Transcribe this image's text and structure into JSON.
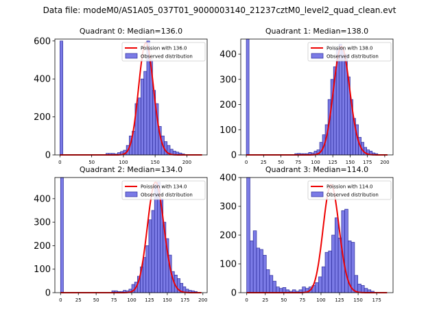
{
  "figure": {
    "suptitle": "Data file: modeM0/AS1A05_037T01_9000003140_21237cztM0_level2_quad_clean.evt"
  },
  "colors": {
    "hist_fill": "#7b7be6",
    "hist_edge": "#2b2b9a",
    "poisson": "#ee0000"
  },
  "chart_data": [
    {
      "type": "bar",
      "title": "Quadrant 0: Median=136.0",
      "median": 136.0,
      "xlim": [
        -8,
        232
      ],
      "ylim": [
        0,
        610
      ],
      "xticks": [
        0,
        50,
        100,
        150,
        200
      ],
      "yticks": [
        0,
        200,
        400,
        600
      ],
      "legend": {
        "placement": "top-right",
        "line": "Poission with 136.0",
        "patch": "Observed distribution"
      },
      "poisson_peak": 590,
      "bin_width": 4.6,
      "bins": [
        [
          0,
          600
        ],
        [
          72.5,
          8
        ],
        [
          77,
          8
        ],
        [
          81.6,
          8
        ],
        [
          86.2,
          5
        ],
        [
          90.8,
          12
        ],
        [
          95.4,
          18
        ],
        [
          100,
          25
        ],
        [
          104.6,
          50
        ],
        [
          109.2,
          100
        ],
        [
          113.8,
          125
        ],
        [
          118.4,
          270
        ],
        [
          123,
          300
        ],
        [
          127.6,
          400
        ],
        [
          132.2,
          440
        ],
        [
          136.8,
          600
        ],
        [
          141.4,
          500
        ],
        [
          146,
          340
        ],
        [
          150.6,
          270
        ],
        [
          155.2,
          150
        ],
        [
          159.8,
          100
        ],
        [
          164.4,
          70
        ],
        [
          169,
          50
        ],
        [
          173.6,
          30
        ],
        [
          178.2,
          20
        ],
        [
          182.8,
          15
        ],
        [
          187.4,
          10
        ],
        [
          192,
          5
        ]
      ]
    },
    {
      "type": "bar",
      "title": "Quadrant 1: Median=138.0",
      "median": 138.0,
      "xlim": [
        -8,
        212
      ],
      "ylim": [
        0,
        460
      ],
      "xticks": [
        0,
        25,
        50,
        75,
        100,
        125,
        150,
        175,
        200
      ],
      "yticks": [
        0,
        100,
        200,
        300,
        400
      ],
      "legend": {
        "placement": "top-right",
        "line": "Poission with 138.0",
        "patch": "Observed distribution"
      },
      "poisson_peak": 430,
      "bin_width": 4.0,
      "bins": [
        [
          0,
          460
        ],
        [
          70,
          5
        ],
        [
          74,
          6
        ],
        [
          78,
          5
        ],
        [
          82,
          5
        ],
        [
          86,
          5
        ],
        [
          90,
          10
        ],
        [
          94,
          8
        ],
        [
          98,
          15
        ],
        [
          102,
          20
        ],
        [
          106,
          50
        ],
        [
          110,
          80
        ],
        [
          114,
          120
        ],
        [
          118,
          220
        ],
        [
          122,
          300
        ],
        [
          126,
          350
        ],
        [
          130,
          420
        ],
        [
          134,
          440
        ],
        [
          138,
          420
        ],
        [
          142,
          400
        ],
        [
          146,
          310
        ],
        [
          150,
          220
        ],
        [
          154,
          145
        ],
        [
          158,
          120
        ],
        [
          162,
          70
        ],
        [
          166,
          50
        ],
        [
          170,
          30
        ],
        [
          174,
          20
        ],
        [
          178,
          15
        ],
        [
          182,
          8
        ],
        [
          186,
          5
        ]
      ]
    },
    {
      "type": "bar",
      "title": "Quadrant 2: Median=134.0",
      "median": 134.0,
      "xlim": [
        -8,
        206
      ],
      "ylim": [
        0,
        490
      ],
      "xticks": [
        0,
        25,
        50,
        75,
        100,
        125,
        150,
        175,
        200
      ],
      "yticks": [
        0,
        100,
        200,
        300,
        400
      ],
      "legend": {
        "placement": "top-right",
        "line": "Poission with 134.0",
        "patch": "Observed distribution"
      },
      "poisson_peak": 470,
      "bin_width": 4.0,
      "bins": [
        [
          0,
          490
        ],
        [
          72,
          8
        ],
        [
          76,
          8
        ],
        [
          80,
          5
        ],
        [
          84,
          5
        ],
        [
          88,
          10
        ],
        [
          92,
          8
        ],
        [
          96,
          15
        ],
        [
          100,
          35
        ],
        [
          104,
          45
        ],
        [
          108,
          70
        ],
        [
          112,
          110
        ],
        [
          116,
          150
        ],
        [
          120,
          200
        ],
        [
          124,
          310
        ],
        [
          128,
          350
        ],
        [
          132,
          460
        ],
        [
          136,
          470
        ],
        [
          140,
          400
        ],
        [
          144,
          300
        ],
        [
          148,
          230
        ],
        [
          152,
          160
        ],
        [
          156,
          90
        ],
        [
          160,
          75
        ],
        [
          164,
          60
        ],
        [
          168,
          40
        ],
        [
          172,
          25
        ],
        [
          176,
          15
        ],
        [
          180,
          10
        ],
        [
          184,
          8
        ],
        [
          188,
          5
        ]
      ]
    },
    {
      "type": "bar",
      "title": "Quadrant 3: Median=114.0",
      "median": 114.0,
      "xlim": [
        -8,
        197
      ],
      "ylim": [
        0,
        400
      ],
      "xticks": [
        0,
        25,
        50,
        75,
        100,
        125,
        150,
        175
      ],
      "yticks": [
        0,
        100,
        200,
        300,
        400
      ],
      "legend": {
        "placement": "top-right",
        "line": "Poission with 114.0",
        "patch": "Observed distribution"
      },
      "poisson_peak": 375,
      "bin_width": 4.4,
      "bins": [
        [
          0,
          400
        ],
        [
          4.4,
          180
        ],
        [
          8.8,
          215
        ],
        [
          13.2,
          155
        ],
        [
          17.6,
          150
        ],
        [
          22,
          130
        ],
        [
          26.4,
          80
        ],
        [
          30.8,
          60
        ],
        [
          35.2,
          40
        ],
        [
          39.6,
          20
        ],
        [
          44,
          15
        ],
        [
          48.4,
          18
        ],
        [
          52.8,
          10
        ],
        [
          57.2,
          5
        ],
        [
          61.6,
          10
        ],
        [
          66,
          5
        ],
        [
          70.4,
          10
        ],
        [
          74.8,
          20
        ],
        [
          79.2,
          15
        ],
        [
          83.6,
          20
        ],
        [
          88,
          25
        ],
        [
          92.4,
          35
        ],
        [
          96.8,
          55
        ],
        [
          101.2,
          90
        ],
        [
          105.6,
          140
        ],
        [
          110,
          145
        ],
        [
          114.4,
          200
        ],
        [
          118.8,
          260
        ],
        [
          123.2,
          190
        ],
        [
          127.6,
          285
        ],
        [
          132,
          290
        ],
        [
          136.4,
          180
        ],
        [
          140.8,
          175
        ],
        [
          145.2,
          60
        ],
        [
          149.6,
          30
        ],
        [
          154,
          25
        ],
        [
          158.4,
          15
        ],
        [
          162.8,
          10
        ],
        [
          167.2,
          5
        ]
      ]
    }
  ]
}
